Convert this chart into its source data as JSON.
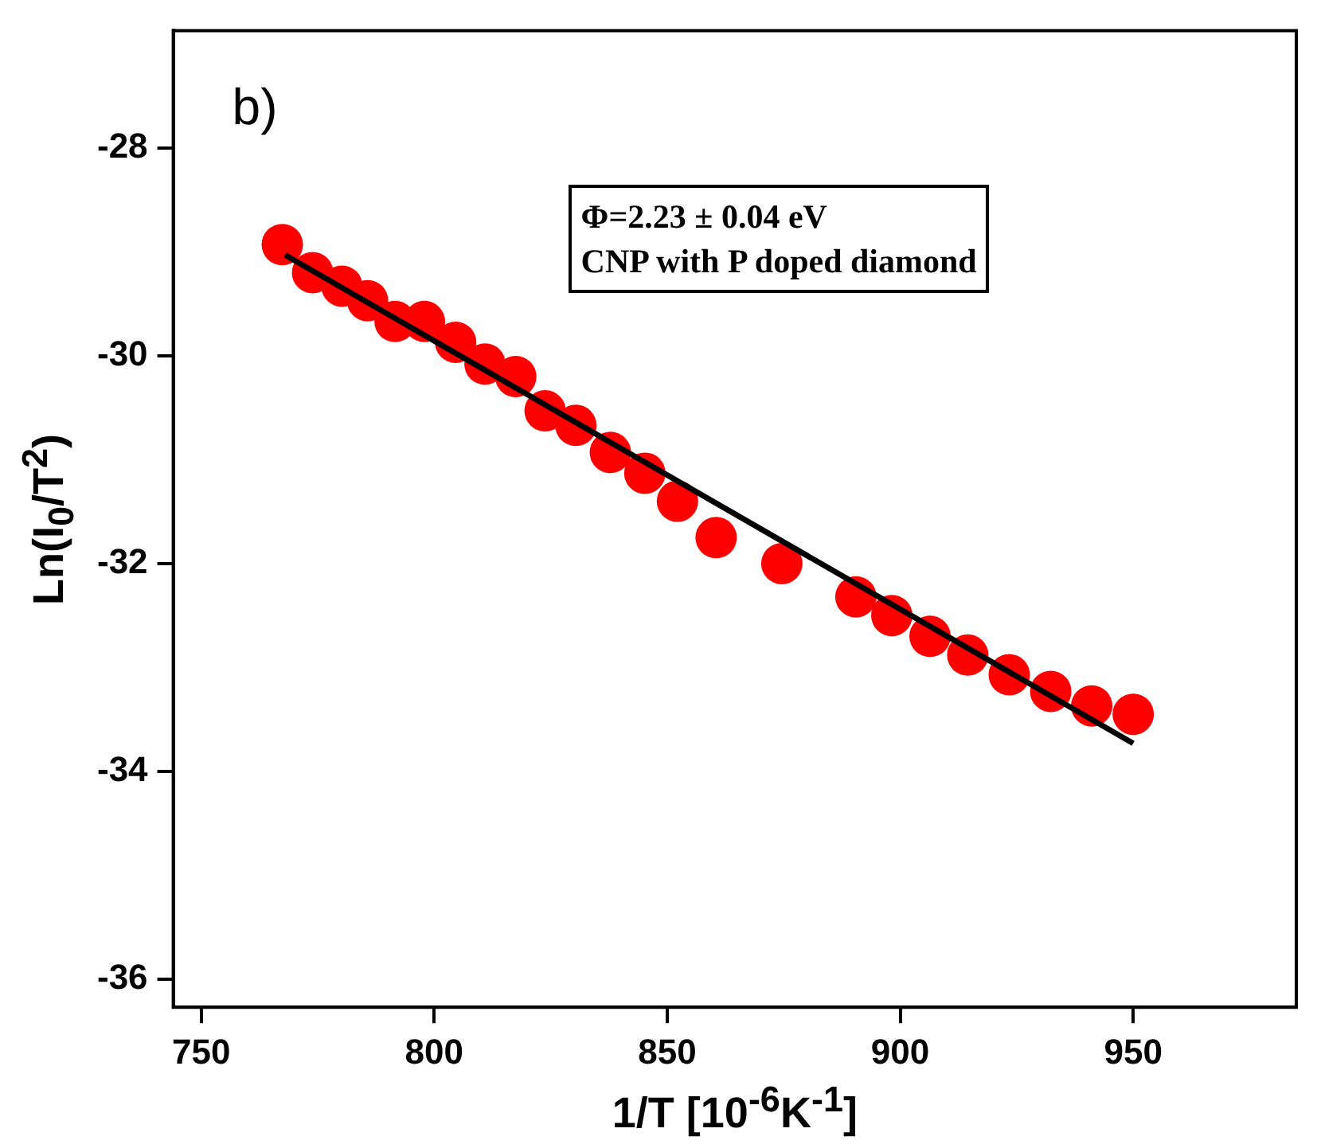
{
  "chart_data": {
    "type": "scatter",
    "xlabel": "1/T [10$^{-6}$K$^{-1}$]",
    "ylabel": "Ln(I$_{0}$/T$^{2}$)",
    "annotations": [
      "b)",
      "Φ=2.23 ± 0.04 eV",
      "CNP with P doped diamond"
    ],
    "xlim": [
      744,
      985
    ],
    "xticks": [
      750,
      800,
      850,
      900,
      950
    ],
    "ylim": [
      -36.27,
      -26.87
    ],
    "yticks": [
      -36,
      -34,
      -32,
      -30,
      -28
    ],
    "grid": false,
    "legend": false,
    "marker": "circle",
    "series": [
      {
        "color": "#ff0000",
        "x": [
          767.4,
          773.9,
          780.2,
          785.7,
          791.6,
          797.9,
          804.6,
          810.9,
          817.5,
          823.8,
          830.4,
          837.8,
          845.2,
          852.2,
          860.5,
          874.6,
          890.5,
          898.2,
          906.4,
          914.5,
          923.4,
          932.3,
          941.1,
          950
        ],
        "values": [
          -28.93,
          -29.2,
          -29.33,
          -29.47,
          -29.67,
          -29.67,
          -29.87,
          -30.08,
          -30.2,
          -30.53,
          -30.67,
          -30.93,
          -31.13,
          -31.4,
          -31.75,
          -32.0,
          -32.32,
          -32.5,
          -32.7,
          -32.88,
          -33.07,
          -33.23,
          -33.37,
          -33.45
        ]
      },
      {
        "type": "line",
        "color": "#000000",
        "marker": "none",
        "x": [
          768,
          950
        ],
        "values": [
          -29.03,
          -33.73
        ]
      }
    ]
  }
}
